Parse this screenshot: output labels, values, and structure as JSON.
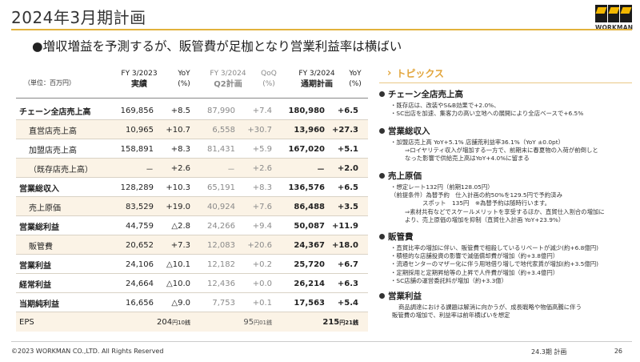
{
  "title": "2024年3月期計画",
  "logo_text": "WORKMAN",
  "subtitle": "●増収増益を予測するが、販管費が足枷となり営業利益率は横ばい",
  "table": {
    "unit": "（単位：百万円）",
    "headers": [
      {
        "line1": "FY 3/2023",
        "line2": "実績"
      },
      {
        "line1": "YoY",
        "line2": "(%)"
      },
      {
        "line1": "FY 3/2024",
        "line2": "Q2計画"
      },
      {
        "line1": "QoQ",
        "line2": "(%)"
      },
      {
        "line1": "FY 3/2024",
        "line2": "通期計画"
      },
      {
        "line1": "YoY",
        "line2": "(%)"
      }
    ],
    "rows": [
      {
        "label": "チェーン全店売上高",
        "fy23": "169,856",
        "yoy23": "+8.5",
        "q2": "87,990",
        "qoq": "+7.4",
        "fy24": "180,980",
        "yoy24": "+6.5"
      },
      {
        "label": "直営店売上高",
        "fy23": "10,965",
        "yoy23": "+10.7",
        "q2": "6,558",
        "qoq": "+30.7",
        "fy24": "13,960",
        "yoy24": "+27.3"
      },
      {
        "label": "加盟店売上高",
        "fy23": "158,891",
        "yoy23": "+8.3",
        "q2": "81,431",
        "qoq": "+5.9",
        "fy24": "167,020",
        "yoy24": "+5.1"
      },
      {
        "label": "（既存店売上高）",
        "fy23": "－",
        "yoy23": "+2.6",
        "q2": "－",
        "qoq": "+2.6",
        "fy24": "－",
        "yoy24": "+2.0"
      },
      {
        "label": "営業総収入",
        "fy23": "128,289",
        "yoy23": "+10.3",
        "q2": "65,191",
        "qoq": "+8.3",
        "fy24": "136,576",
        "yoy24": "+6.5"
      },
      {
        "label": "売上原価",
        "fy23": "83,529",
        "yoy23": "+19.0",
        "q2": "40,924",
        "qoq": "+7.6",
        "fy24": "86,488",
        "yoy24": "+3.5"
      },
      {
        "label": "営業総利益",
        "fy23": "44,759",
        "yoy23": "△2.8",
        "q2": "24,266",
        "qoq": "+9.4",
        "fy24": "50,087",
        "yoy24": "+11.9"
      },
      {
        "label": "販管費",
        "fy23": "20,652",
        "yoy23": "+7.3",
        "q2": "12,083",
        "qoq": "+20.6",
        "fy24": "24,367",
        "yoy24": "+18.0"
      },
      {
        "label": "営業利益",
        "fy23": "24,106",
        "yoy23": "△10.1",
        "q2": "12,182",
        "qoq": "+0.2",
        "fy24": "25,720",
        "yoy24": "+6.7"
      },
      {
        "label": "経常利益",
        "fy23": "24,664",
        "yoy23": "△10.0",
        "q2": "12,436",
        "qoq": "+0.0",
        "fy24": "26,214",
        "yoy24": "+6.3"
      },
      {
        "label": "当期純利益",
        "fy23": "16,656",
        "yoy23": "△9.0",
        "q2": "7,753",
        "qoq": "+0.1",
        "fy24": "17,563",
        "yoy24": "+5.4"
      }
    ],
    "eps": {
      "label": "EPS",
      "fy23_yen": "204",
      "fy23_sen": "円10銭",
      "q2_yen": "95",
      "q2_sen": "円01銭",
      "fy24_yen": "215",
      "fy24_sen": "円21銭"
    }
  },
  "topics": {
    "heading": "トピックス",
    "sections": [
      {
        "title": "チェーン全店売上高",
        "lines": [
          "・既存店は、改装やS&B効果で+2.0%、",
          "・SC出店を加速、集客力の高い立地への展開により全店ベースで+6.5%"
        ]
      },
      {
        "title": "営業総収入",
        "lines": [
          "・加盟店売上高 YoY+5.1% 店舗荒利益率36.1%（YoY ±0.0pt）",
          "⇒ロイヤリティ収入が増加する一方で、前期末に春夏物の入荷が前倒しと",
          "なった影響で供給売上高はYoY+4.0%に留まる"
        ]
      },
      {
        "title": "売上原価",
        "lines": [
          "・想定レート132円（前期128.05円）",
          "（前提条件）為替予約　仕入計画の約50%を129.5円で予約済み",
          "スポット　135円　※為替予約は随時行います。",
          "⇒素材共有などでスケールメリットを享受するほか、直貿仕入割合の増加に",
          "より、売上原価の増加を抑制（直貿仕入計画 YoY+23.9%）"
        ]
      },
      {
        "title": "販管費",
        "lines": [
          "・直貿比率の増加に伴い、販管費で相殺しているリベートが減少(約+6.8億円)",
          "・積極的な店舗投資の影響で減価償却費が増加（約+3.8億円）",
          "・流通センターのマザー化に伴う用地借り増しで地代家賃が増加(約+3.5億円)",
          "・定期採用と定期昇給等の上昇で人件費が増加（約+3.4億円）",
          "・SC店舗の運営委託料が増加（約+3.3億）"
        ]
      },
      {
        "title": "営業利益",
        "lines": [
          "商品調達における課題は解消に向かうが、成長戦略や物価高騰に伴う",
          "販管費の増加で、利益率は前年横ばいを想定"
        ]
      }
    ]
  },
  "footer": {
    "copyright": "©2023 WORKMAN CO.,LTD. All Rights Reserved",
    "label": "24.3期 計画",
    "page": "26"
  },
  "colors": {
    "accent": "#e2a53b",
    "row_shade": "#fbf3e6",
    "grey_text": "#8a8a8a"
  }
}
